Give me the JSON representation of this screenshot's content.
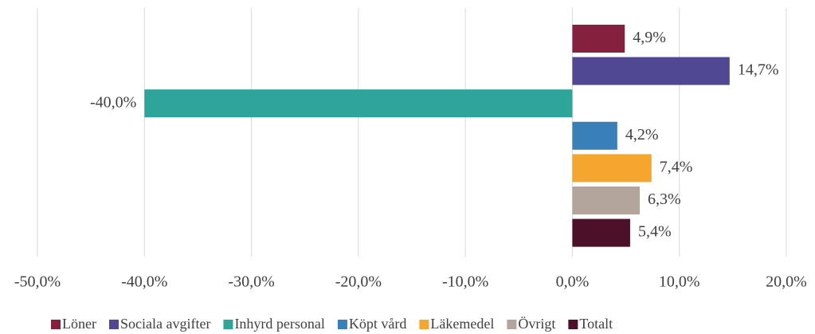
{
  "chart_data": {
    "type": "bar",
    "orientation": "horizontal",
    "xlim": [
      -50,
      20
    ],
    "xticks": [
      {
        "value": -50,
        "label": "-50,0%"
      },
      {
        "value": -40,
        "label": "-40,0%"
      },
      {
        "value": -30,
        "label": "-30,0%"
      },
      {
        "value": -20,
        "label": "-20,0%"
      },
      {
        "value": -10,
        "label": "-10,0%"
      },
      {
        "value": 0,
        "label": "0,0%"
      },
      {
        "value": 10,
        "label": "10,0%"
      },
      {
        "value": 20,
        "label": "20,0%"
      }
    ],
    "grid": true,
    "legend": "bottom",
    "series": [
      {
        "name": "Löner",
        "color": "#86203f",
        "values": [
          4.9
        ],
        "value_labels": [
          "4,9%"
        ]
      },
      {
        "name": "Sociala avgifter",
        "color": "#514894",
        "values": [
          14.7
        ],
        "value_labels": [
          "14,7%"
        ]
      },
      {
        "name": "Inhyrd personal",
        "color": "#2ea59b",
        "values": [
          -40.0
        ],
        "value_labels": [
          "-40,0%"
        ]
      },
      {
        "name": "Köpt vård",
        "color": "#3a80b8",
        "values": [
          4.2
        ],
        "value_labels": [
          "4,2%"
        ]
      },
      {
        "name": "Läkemedel",
        "color": "#f5a62e",
        "values": [
          7.4
        ],
        "value_labels": [
          "7,4%"
        ]
      },
      {
        "name": "Övrigt",
        "color": "#b3a49c",
        "values": [
          6.3
        ],
        "value_labels": [
          "6,3%"
        ]
      },
      {
        "name": "Totalt",
        "color": "#4c1129",
        "values": [
          5.4
        ],
        "value_labels": [
          "5,4%"
        ]
      }
    ]
  }
}
